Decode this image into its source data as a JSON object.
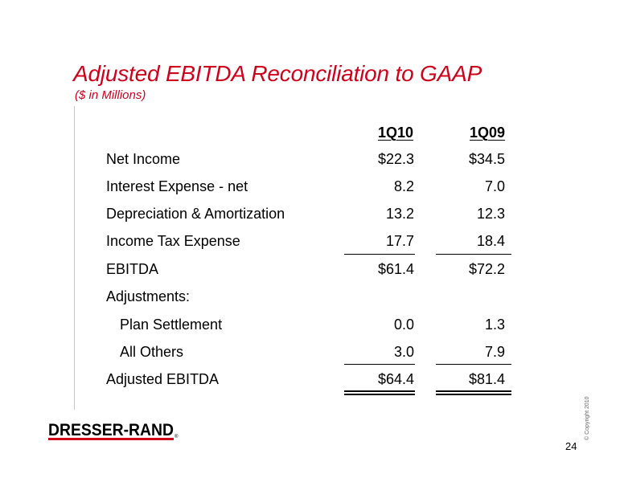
{
  "title": "Adjusted EBITDA Reconciliation to GAAP",
  "subtitle": "($ in Millions)",
  "columns": [
    "1Q10",
    "1Q09"
  ],
  "rows": [
    {
      "label": "Net Income",
      "v1": "$22.3",
      "v2": "$34.5"
    },
    {
      "label": "Interest Expense - net",
      "v1": "8.2",
      "v2": "7.0"
    },
    {
      "label": "Depreciation & Amortization",
      "v1": "13.2",
      "v2": "12.3"
    },
    {
      "label": "Income Tax Expense",
      "v1": "17.7",
      "v2": "18.4"
    },
    {
      "label": "EBITDA",
      "v1": "$61.4",
      "v2": "$72.2"
    },
    {
      "label": "Adjustments:",
      "v1": "",
      "v2": ""
    },
    {
      "label": "Plan Settlement",
      "v1": "0.0",
      "v2": "1.3"
    },
    {
      "label": "All Others",
      "v1": "3.0",
      "v2": "7.9"
    },
    {
      "label": "Adjusted EBITDA",
      "v1": "$64.4",
      "v2": "$81.4"
    }
  ],
  "logo_text": "DRESSER-RAND",
  "copyright": "© Copyright  2010",
  "page_number": "24",
  "colors": {
    "title": "#d0021b",
    "logo_bar": "#d0021b"
  }
}
